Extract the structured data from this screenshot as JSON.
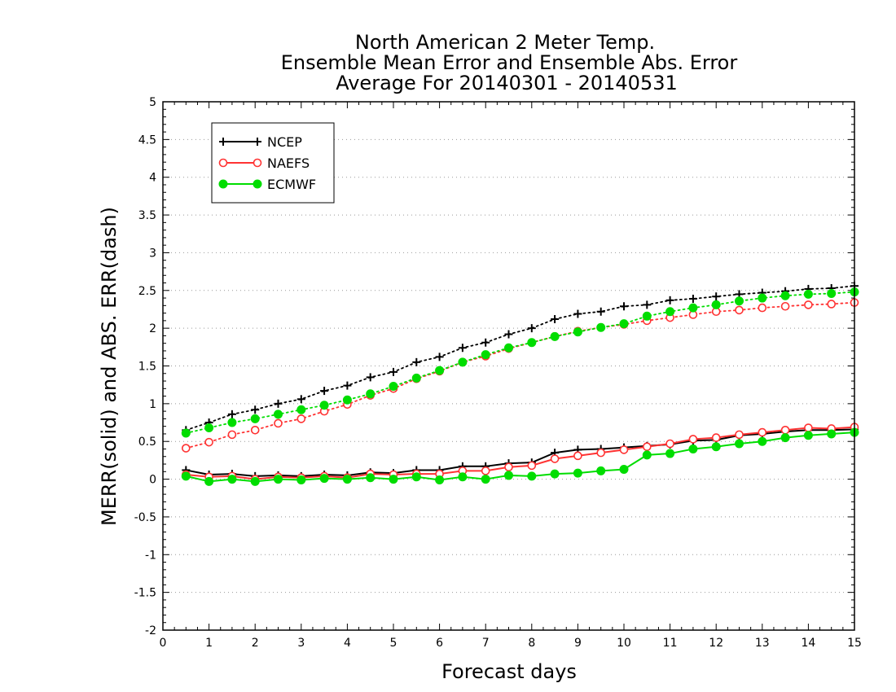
{
  "chart_data": {
    "type": "line",
    "title": [
      "North American 2 Meter Temp.",
      "Ensemble Mean Error and Ensemble Abs. Error",
      "Average For 20140301 - 20140531"
    ],
    "xlabel": "Forecast days",
    "ylabel": "MERR(solid) and ABS. ERR(dash)",
    "xlim": [
      0,
      15
    ],
    "ylim": [
      -2,
      5
    ],
    "xticks": [
      "0",
      "1",
      "2",
      "3",
      "4",
      "5",
      "6",
      "7",
      "8",
      "9",
      "10",
      "11",
      "12",
      "13",
      "14",
      "15"
    ],
    "yticks": [
      "-2",
      "-1.5",
      "-1",
      "-0.5",
      "0",
      "0.5",
      "1",
      "1.5",
      "2",
      "2.5",
      "3",
      "3.5",
      "4",
      "4.5",
      "5"
    ],
    "grid": "horizontal dotted",
    "legend_position": "top-left",
    "x": [
      0.5,
      1,
      1.5,
      2,
      2.5,
      3,
      3.5,
      4,
      4.5,
      5,
      5.5,
      6,
      6.5,
      7,
      7.5,
      8,
      8.5,
      9,
      9.5,
      10,
      10.5,
      11,
      11.5,
      12,
      12.5,
      13,
      13.5,
      14,
      14.5,
      15
    ],
    "series": [
      {
        "name": "NCEP",
        "color": "#000000",
        "marker": "plus",
        "merr": [
          0.12,
          0.06,
          0.07,
          0.04,
          0.05,
          0.04,
          0.06,
          0.05,
          0.09,
          0.08,
          0.12,
          0.12,
          0.17,
          0.17,
          0.21,
          0.22,
          0.35,
          0.39,
          0.4,
          0.42,
          0.44,
          0.46,
          0.51,
          0.52,
          0.58,
          0.6,
          0.63,
          0.65,
          0.65,
          0.66
        ],
        "abs_err": [
          0.65,
          0.75,
          0.86,
          0.92,
          1.0,
          1.06,
          1.17,
          1.24,
          1.35,
          1.42,
          1.55,
          1.62,
          1.74,
          1.81,
          1.92,
          2.0,
          2.12,
          2.19,
          2.22,
          2.29,
          2.31,
          2.37,
          2.39,
          2.42,
          2.45,
          2.47,
          2.49,
          2.52,
          2.53,
          2.56
        ]
      },
      {
        "name": "NAEFS",
        "color": "#ff3333",
        "marker": "open-circle",
        "merr": [
          0.06,
          0.03,
          0.04,
          0.0,
          0.03,
          0.02,
          0.04,
          0.02,
          0.07,
          0.06,
          0.07,
          0.07,
          0.11,
          0.11,
          0.16,
          0.18,
          0.27,
          0.31,
          0.35,
          0.39,
          0.43,
          0.47,
          0.53,
          0.55,
          0.59,
          0.62,
          0.65,
          0.68,
          0.67,
          0.69
        ],
        "abs_err": [
          0.41,
          0.49,
          0.59,
          0.65,
          0.74,
          0.8,
          0.9,
          0.99,
          1.11,
          1.2,
          1.33,
          1.43,
          1.55,
          1.63,
          1.73,
          1.81,
          1.89,
          1.96,
          2.01,
          2.05,
          2.1,
          2.14,
          2.18,
          2.22,
          2.24,
          2.27,
          2.29,
          2.31,
          2.32,
          2.34
        ]
      },
      {
        "name": "ECMWF",
        "color": "#00dd00",
        "marker": "filled-circle",
        "merr": [
          0.04,
          -0.03,
          0.0,
          -0.03,
          0.0,
          -0.01,
          0.01,
          0.0,
          0.02,
          0.0,
          0.03,
          -0.01,
          0.03,
          0.0,
          0.05,
          0.04,
          0.07,
          0.08,
          0.11,
          0.13,
          0.32,
          0.34,
          0.4,
          0.43,
          0.47,
          0.5,
          0.55,
          0.58,
          0.6,
          0.62
        ],
        "abs_err": [
          0.61,
          0.68,
          0.75,
          0.8,
          0.86,
          0.92,
          0.98,
          1.05,
          1.13,
          1.23,
          1.34,
          1.44,
          1.55,
          1.65,
          1.74,
          1.81,
          1.89,
          1.95,
          2.01,
          2.06,
          2.16,
          2.22,
          2.27,
          2.31,
          2.36,
          2.4,
          2.43,
          2.45,
          2.46,
          2.48
        ]
      }
    ]
  }
}
